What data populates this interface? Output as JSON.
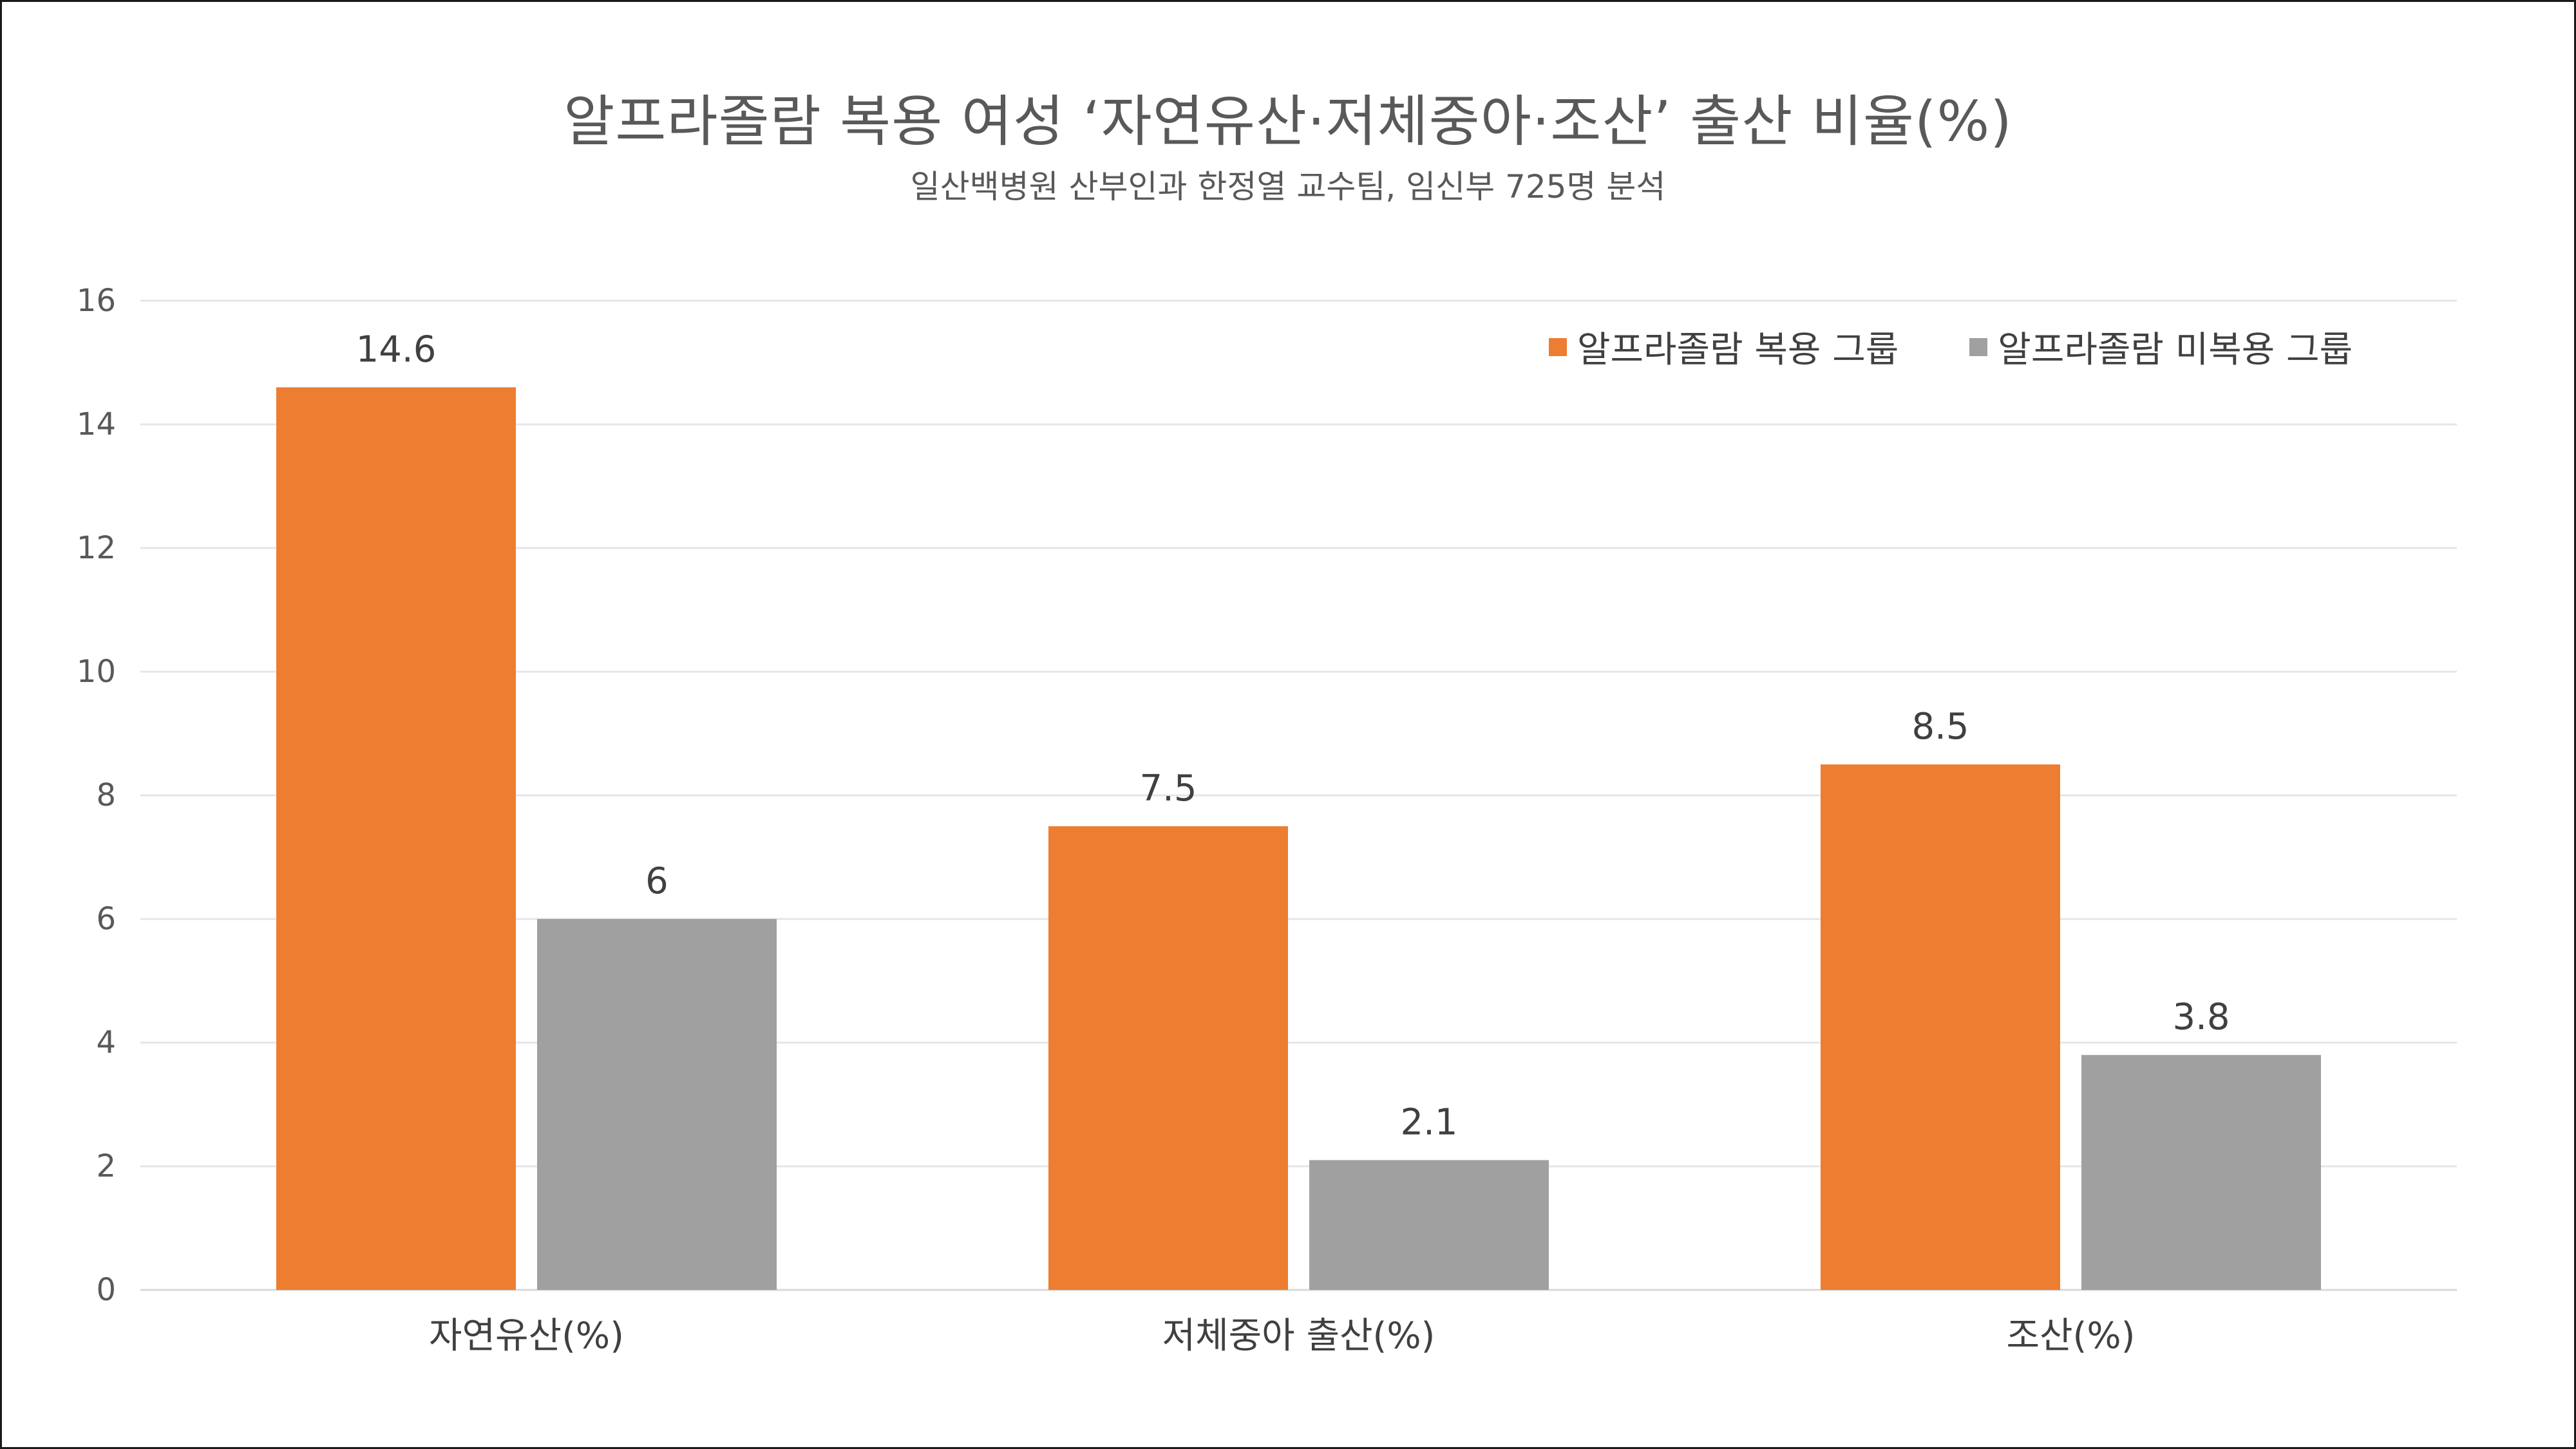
{
  "chart_data": {
    "type": "bar",
    "title": "알프라졸람 복용 여성 ‘자연유산·저체중아·조산’ 출산 비율(%)",
    "subtitle": "일산백병원 산부인과 한정열 교수팀, 임신부 725명 분석",
    "categories": [
      "자연유산(%)",
      "저체중아 출산(%)",
      "조산(%)"
    ],
    "series": [
      {
        "name": "알프라졸람 복용 그룹",
        "color": "#ED7D31",
        "values": [
          14.6,
          7.5,
          8.5
        ],
        "labels": [
          "14.6",
          "7.5",
          "8.5"
        ]
      },
      {
        "name": "알프라졸람 미복용 그룹",
        "color": "#A0A0A0",
        "values": [
          6,
          2.1,
          3.8
        ],
        "labels": [
          "6",
          "2.1",
          "3.8"
        ]
      }
    ],
    "ylim": [
      0,
      16
    ],
    "yticks": [
      0,
      2,
      4,
      6,
      8,
      10,
      12,
      14,
      16
    ],
    "grid": true,
    "legend_position": "top-right"
  }
}
